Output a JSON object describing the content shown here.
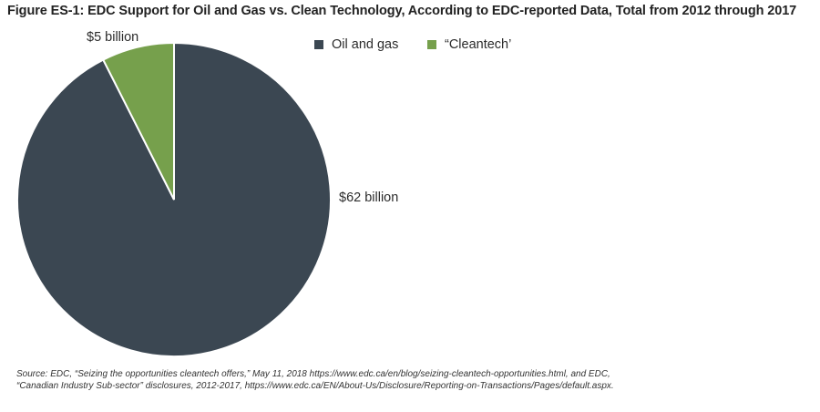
{
  "chart_data": {
    "type": "pie",
    "title": "Figure ES-1: EDC Support for Oil and Gas vs. Clean Technology, According to EDC-reported Data, Total from 2012 through 2017",
    "slices": [
      {
        "name": "Oil and gas",
        "value": 62,
        "label": "$62 billion",
        "color": "#3b4752"
      },
      {
        "name": "“Cleantech’",
        "value": 5,
        "label": "$5 billion",
        "color": "#76a04c"
      }
    ],
    "legend": "top-right"
  },
  "source": {
    "line1": "Source: EDC, “Seizing the opportunities cleantech offers,” May 11, 2018 https://www.edc.ca/en/blog/seizing-cleantech-opportunities.html, and EDC,",
    "line2": "“Canadian Industry Sub-sector” disclosures, 2012-2017, https://www.edc.ca/EN/About-Us/Disclosure/Reporting-on-Transactions/Pages/default.aspx."
  }
}
